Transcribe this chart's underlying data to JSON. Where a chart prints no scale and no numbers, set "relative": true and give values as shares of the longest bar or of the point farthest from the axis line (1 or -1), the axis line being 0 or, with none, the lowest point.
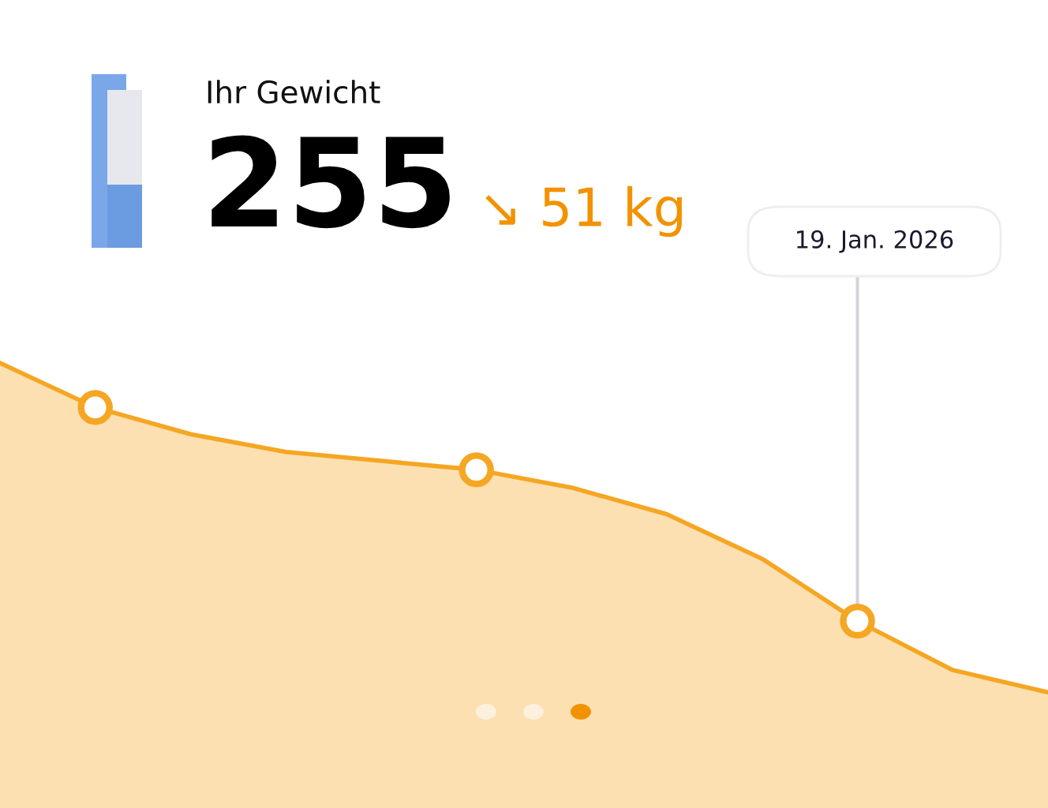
{
  "chart_data": {
    "type": "area",
    "relative": true,
    "title": "Ihr Gewicht",
    "subtitle": "255",
    "annotations": [
      "↘ 51 kg",
      "19. Jan. 2026"
    ],
    "categories": [
      null,
      null,
      null,
      null,
      null,
      null,
      null,
      null,
      null,
      null,
      null,
      null
    ],
    "series": [
      {
        "color": "#f5a623",
        "values": [
          1,
          0.9,
          0.84,
          0.8,
          0.78,
          0.76,
          0.72,
          0.66,
          0.56,
          0.42,
          0.31,
          0.26
        ]
      }
    ]
  }
}
